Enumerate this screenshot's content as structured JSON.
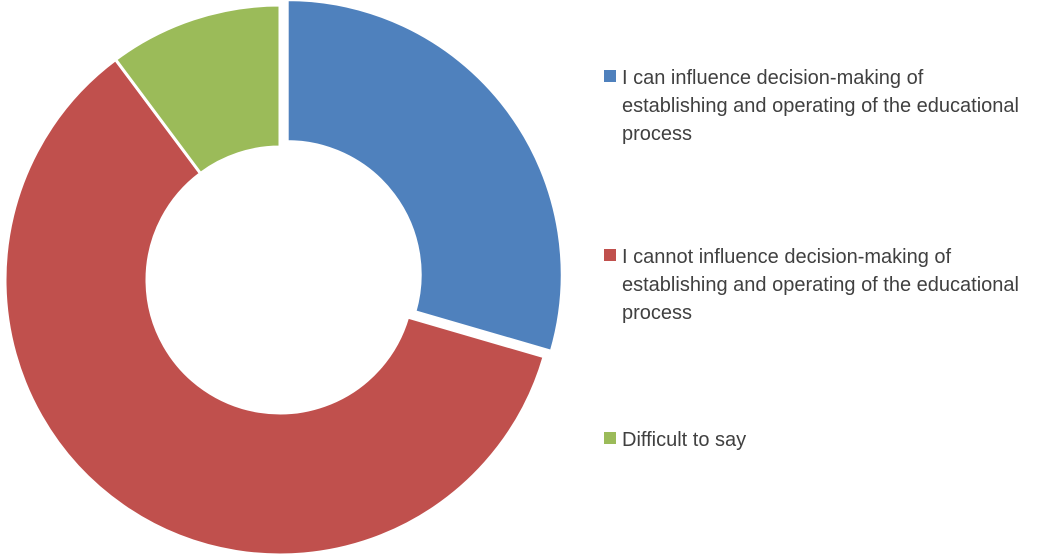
{
  "chart_data": {
    "type": "pie",
    "donut": true,
    "title": "",
    "legend_position": "right",
    "categories": [
      "I can influence decision-making of establishing and operating of the educational process",
      "I cannot influence decision-making of establishing and operating of the educational process",
      "Difficult to say"
    ],
    "values": [
      29.5,
      60.3,
      10.2
    ],
    "colors": [
      "#4F81BD",
      "#C0504D",
      "#9BBB59"
    ],
    "exploded_slice": 0
  }
}
